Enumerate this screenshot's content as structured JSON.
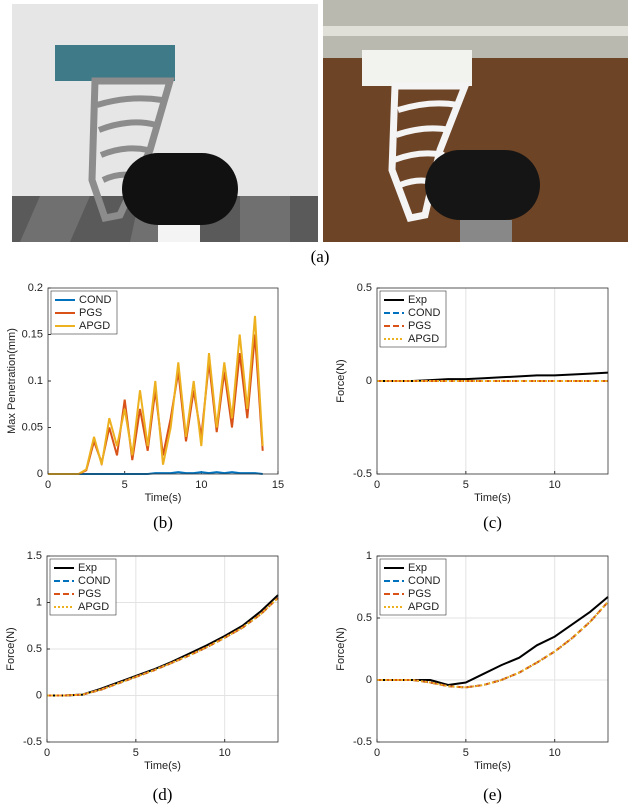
{
  "panel_a": {
    "caption": "(a)"
  },
  "chart_data": [
    {
      "type": "line",
      "caption": "(b)",
      "xlabel": "Time(s)",
      "ylabel": "Max Penetration(mm)",
      "xlim": [
        0,
        15
      ],
      "xticks": [
        0,
        5,
        10,
        15
      ],
      "ylim": [
        0,
        0.2
      ],
      "yticks": [
        0,
        0.05,
        0.1,
        0.15,
        0.2
      ],
      "grid": false,
      "legend": "upper-left",
      "x": [
        0,
        0.5,
        1,
        1.5,
        2,
        2.5,
        3,
        3.5,
        4,
        4.5,
        5,
        5.5,
        6,
        6.5,
        7,
        7.5,
        8,
        8.5,
        9,
        9.5,
        10,
        10.5,
        11,
        11.5,
        12,
        12.5,
        13,
        13.5,
        14
      ],
      "series": [
        {
          "name": "COND",
          "color": "#0072bd",
          "style": "solid",
          "values": [
            0,
            0,
            0,
            0,
            0,
            0,
            0,
            0,
            0,
            0,
            0,
            0,
            0,
            0,
            0.001,
            0.001,
            0.001,
            0.002,
            0.001,
            0.001,
            0.002,
            0.001,
            0.002,
            0.001,
            0.002,
            0.001,
            0.001,
            0.001,
            0
          ]
        },
        {
          "name": "PGS",
          "color": "#d95319",
          "style": "solid",
          "values": [
            0,
            0,
            0,
            0,
            0,
            0.004,
            0.035,
            0.012,
            0.05,
            0.02,
            0.08,
            0.015,
            0.07,
            0.025,
            0.09,
            0.02,
            0.06,
            0.11,
            0.035,
            0.09,
            0.04,
            0.12,
            0.045,
            0.11,
            0.05,
            0.13,
            0.06,
            0.15,
            0.025
          ]
        },
        {
          "name": "APGD",
          "color": "#edb120",
          "style": "solid",
          "values": [
            0,
            0,
            0,
            0,
            0,
            0.005,
            0.04,
            0.01,
            0.06,
            0.03,
            0.07,
            0.02,
            0.09,
            0.03,
            0.1,
            0.01,
            0.05,
            0.12,
            0.04,
            0.1,
            0.03,
            0.13,
            0.05,
            0.12,
            0.06,
            0.15,
            0.07,
            0.17,
            0.03
          ]
        }
      ]
    },
    {
      "type": "line",
      "caption": "(c)",
      "xlabel": "Time(s)",
      "ylabel": "Force(N)",
      "xlim": [
        0,
        13
      ],
      "xticks": [
        0,
        5,
        10
      ],
      "ylim": [
        -0.5,
        0.5
      ],
      "yticks": [
        -0.5,
        0,
        0.5
      ],
      "grid": true,
      "legend": "upper-left",
      "x": [
        0,
        1,
        2,
        3,
        4,
        5,
        6,
        7,
        8,
        9,
        10,
        11,
        12,
        13
      ],
      "series": [
        {
          "name": "Exp",
          "color": "#000000",
          "style": "solid",
          "values": [
            0,
            0,
            0,
            0.005,
            0.01,
            0.01,
            0.015,
            0.02,
            0.025,
            0.03,
            0.03,
            0.035,
            0.04,
            0.045
          ]
        },
        {
          "name": "COND",
          "color": "#0072bd",
          "style": "dashed",
          "values": [
            0,
            0,
            0,
            0,
            0,
            0,
            0,
            0,
            0,
            0,
            0,
            0,
            0,
            0
          ]
        },
        {
          "name": "PGS",
          "color": "#d95319",
          "style": "dashed",
          "values": [
            0,
            0,
            0,
            0,
            0,
            0,
            0,
            0,
            0,
            0,
            0,
            0,
            0,
            0
          ]
        },
        {
          "name": "APGD",
          "color": "#edb120",
          "style": "dotted",
          "values": [
            0,
            0,
            0,
            0,
            0,
            0,
            0,
            0,
            0,
            0,
            0,
            0,
            0,
            0
          ]
        }
      ]
    },
    {
      "type": "line",
      "caption": "(d)",
      "xlabel": "Time(s)",
      "ylabel": "Force(N)",
      "xlim": [
        0,
        13
      ],
      "xticks": [
        0,
        5,
        10
      ],
      "ylim": [
        -0.5,
        1.5
      ],
      "yticks": [
        -0.5,
        0,
        0.5,
        1,
        1.5
      ],
      "grid": true,
      "legend": "upper-left",
      "x": [
        0,
        1,
        2,
        3,
        4,
        5,
        6,
        7,
        8,
        9,
        10,
        11,
        12,
        13
      ],
      "series": [
        {
          "name": "Exp",
          "color": "#000000",
          "style": "solid",
          "values": [
            0,
            0,
            0.01,
            0.07,
            0.14,
            0.21,
            0.28,
            0.36,
            0.45,
            0.54,
            0.64,
            0.75,
            0.9,
            1.08
          ]
        },
        {
          "name": "COND",
          "color": "#0072bd",
          "style": "dashed",
          "values": [
            0,
            0,
            0.01,
            0.06,
            0.13,
            0.2,
            0.27,
            0.35,
            0.43,
            0.52,
            0.62,
            0.73,
            0.87,
            1.05
          ]
        },
        {
          "name": "PGS",
          "color": "#d95319",
          "style": "dashed",
          "values": [
            0,
            0,
            0.01,
            0.06,
            0.13,
            0.2,
            0.27,
            0.35,
            0.43,
            0.52,
            0.62,
            0.73,
            0.87,
            1.05
          ]
        },
        {
          "name": "APGD",
          "color": "#edb120",
          "style": "dotted",
          "values": [
            0,
            0,
            0.01,
            0.06,
            0.13,
            0.2,
            0.27,
            0.35,
            0.43,
            0.52,
            0.62,
            0.73,
            0.87,
            1.05
          ]
        }
      ]
    },
    {
      "type": "line",
      "caption": "(e)",
      "xlabel": "Time(s)",
      "ylabel": "Force(N)",
      "xlim": [
        0,
        13
      ],
      "xticks": [
        0,
        5,
        10
      ],
      "ylim": [
        -0.5,
        1
      ],
      "yticks": [
        -0.5,
        0,
        0.5,
        1
      ],
      "grid": true,
      "legend": "upper-left",
      "x": [
        0,
        1,
        2,
        3,
        4,
        5,
        6,
        7,
        8,
        9,
        10,
        11,
        12,
        13
      ],
      "series": [
        {
          "name": "Exp",
          "color": "#000000",
          "style": "solid",
          "values": [
            0,
            0,
            0,
            0,
            -0.04,
            -0.02,
            0.05,
            0.12,
            0.18,
            0.28,
            0.35,
            0.45,
            0.55,
            0.67
          ]
        },
        {
          "name": "COND",
          "color": "#0072bd",
          "style": "dashed",
          "values": [
            0,
            0,
            0,
            -0.02,
            -0.05,
            -0.06,
            -0.04,
            0,
            0.06,
            0.14,
            0.23,
            0.34,
            0.47,
            0.63
          ]
        },
        {
          "name": "PGS",
          "color": "#d95319",
          "style": "dashed",
          "values": [
            0,
            0,
            0,
            -0.02,
            -0.05,
            -0.06,
            -0.04,
            0,
            0.06,
            0.14,
            0.23,
            0.34,
            0.47,
            0.63
          ]
        },
        {
          "name": "APGD",
          "color": "#edb120",
          "style": "dotted",
          "values": [
            0,
            0,
            0,
            -0.02,
            -0.05,
            -0.06,
            -0.04,
            0,
            0.06,
            0.14,
            0.23,
            0.34,
            0.47,
            0.63
          ]
        }
      ]
    }
  ]
}
